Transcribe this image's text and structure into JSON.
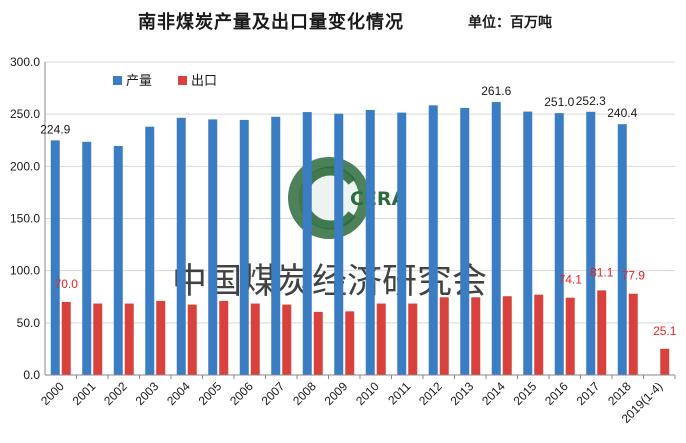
{
  "title": "南非煤炭产量及出口量变化情况",
  "unit_label": "单位：百万吨",
  "watermark": {
    "logo_text": "CERA",
    "org_name": "中国煤炭经济研究会"
  },
  "colors": {
    "production": "#3a7dc3",
    "export": "#d9413d",
    "export_label": "#e8231f",
    "axis": "#888888",
    "grid": "#d9d9d9"
  },
  "chart_data": {
    "type": "bar",
    "categories": [
      "2000",
      "2001",
      "2002",
      "2003",
      "2004",
      "2005",
      "2006",
      "2007",
      "2008",
      "2009",
      "2010",
      "2011",
      "2012",
      "2013",
      "2014",
      "2015",
      "2016",
      "2017",
      "2018",
      "2019(1-4)"
    ],
    "series": [
      {
        "name": "产量",
        "values": [
          224.9,
          223.5,
          219.5,
          238.0,
          246.5,
          245.0,
          244.5,
          247.5,
          252.0,
          250.5,
          254.0,
          251.5,
          258.5,
          256.0,
          261.6,
          252.5,
          251.0,
          252.3,
          240.4,
          null
        ]
      },
      {
        "name": "出口",
        "values": [
          70.0,
          68.5,
          68.5,
          71.0,
          67.5,
          71.0,
          68.5,
          67.5,
          60.5,
          61.0,
          68.5,
          68.5,
          74.5,
          74.5,
          75.5,
          77.0,
          74.1,
          81.1,
          77.9,
          25.1
        ]
      }
    ],
    "data_labels": {
      "产量": [
        {
          "category": "2000",
          "text": "224.9"
        },
        {
          "category": "2014",
          "text": "261.6"
        },
        {
          "category": "2016",
          "text": "251.0"
        },
        {
          "category": "2017",
          "text": "252.3"
        },
        {
          "category": "2018",
          "text": "240.4"
        }
      ],
      "出口": [
        {
          "category": "2000",
          "text": "70.0"
        },
        {
          "category": "2016",
          "text": "74.1"
        },
        {
          "category": "2017",
          "text": "81.1"
        },
        {
          "category": "2018",
          "text": "77.9"
        },
        {
          "category": "2019(1-4)",
          "text": "25.1"
        }
      ]
    },
    "ylim": [
      0,
      300
    ],
    "yticks": [
      "0.0",
      "50.0",
      "100.0",
      "150.0",
      "200.0",
      "250.0",
      "300.0"
    ],
    "grid": true,
    "legend_position": "top-left"
  }
}
